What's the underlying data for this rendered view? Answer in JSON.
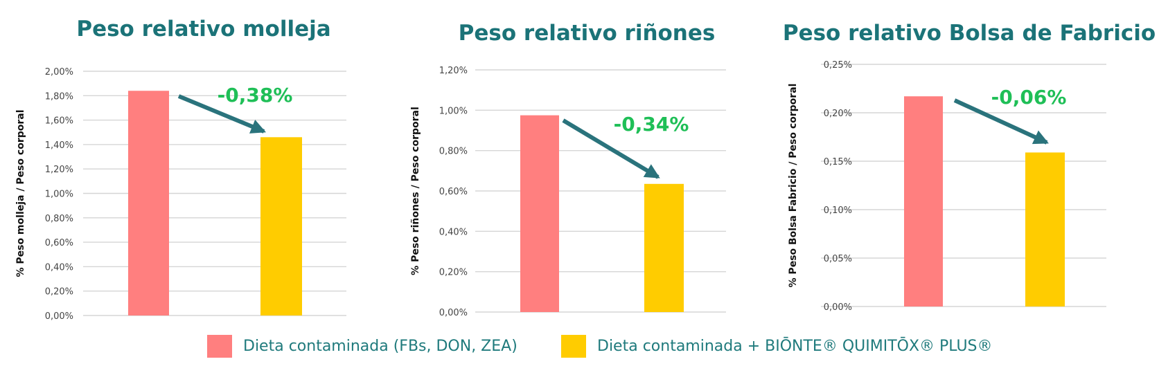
{
  "colors": {
    "title": "#1b7378",
    "red": "#ff7f7f",
    "yellow": "#ffcc00",
    "arrow": "#2a737c",
    "change": "#1fbf57",
    "grid": "#d5d5d5",
    "tick": "#444444",
    "axis_label": "#111111",
    "legend_text": "#1f7a7c"
  },
  "chart_data": [
    {
      "type": "bar",
      "title": "Peso relativo molleja",
      "ylabel": "% Peso molleja / Peso corporal",
      "xlabel": "",
      "categories": [
        "Dieta contaminada (FBs, DON, ZEA)",
        "Dieta contaminada + BIŌNTE® QUIMITŌX® PLUS®"
      ],
      "values": [
        1.84,
        1.46
      ],
      "ylim": [
        0,
        2.0
      ],
      "yticks": [
        0.0,
        0.2,
        0.4,
        0.6,
        0.8,
        1.0,
        1.2,
        1.4,
        1.6,
        1.8,
        2.0
      ],
      "ytick_labels": [
        "0,00%",
        "0,20%",
        "0,40%",
        "0,60%",
        "0,80%",
        "1,00%",
        "1,20%",
        "1,40%",
        "1,60%",
        "1,80%",
        "2,00%"
      ],
      "grid": true,
      "annotation": "-0,38%"
    },
    {
      "type": "bar",
      "title": "Peso relativo riñones",
      "ylabel": "% Peso riñones / Peso corporal",
      "xlabel": "",
      "categories": [
        "Dieta contaminada (FBs, DON, ZEA)",
        "Dieta contaminada + BIŌNTE® QUIMITŌX® PLUS®"
      ],
      "values": [
        0.975,
        0.635
      ],
      "ylim": [
        0,
        1.2
      ],
      "yticks": [
        0.0,
        0.2,
        0.4,
        0.6,
        0.8,
        1.0,
        1.2
      ],
      "ytick_labels": [
        "0,00%",
        "0,20%",
        "0,40%",
        "0,60%",
        "0,80%",
        "1,00%",
        "1,20%"
      ],
      "grid": true,
      "annotation": "-0,34%"
    },
    {
      "type": "bar",
      "title": "Peso relativo Bolsa de Fabricio",
      "ylabel": "% Peso Bolsa Fabricio / Peso corporal",
      "xlabel": "",
      "categories": [
        "Dieta contaminada (FBs, DON, ZEA)",
        "Dieta contaminada + BIŌNTE® QUIMITŌX® PLUS®"
      ],
      "values": [
        0.217,
        0.159
      ],
      "ylim": [
        0,
        0.25
      ],
      "yticks": [
        0.0,
        0.05,
        0.1,
        0.15,
        0.2,
        0.25
      ],
      "ytick_labels": [
        "0,00%",
        "0,05%",
        "0,10%",
        "0,15%",
        "0,20%",
        "0,25%"
      ],
      "grid": true,
      "annotation": "-0,06%"
    }
  ],
  "legend": {
    "items": [
      {
        "label": "Dieta contaminada (FBs, DON, ZEA)",
        "color_key": "red"
      },
      {
        "label": "Dieta contaminada + BIŌNTE® QUIMITŌX® PLUS®",
        "color_key": "yellow"
      }
    ]
  }
}
